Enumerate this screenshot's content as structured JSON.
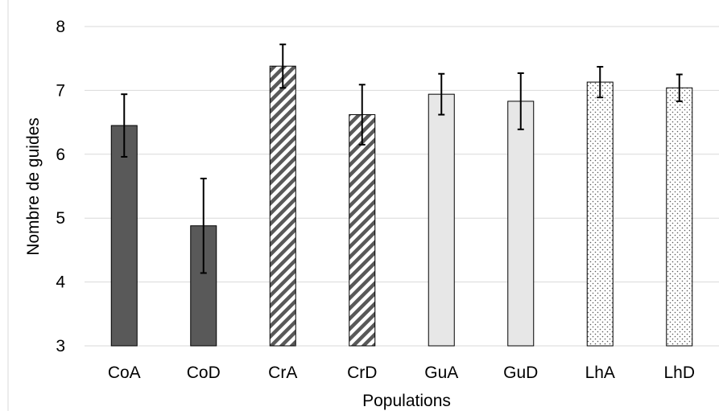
{
  "chart_data": {
    "type": "bar",
    "title": "",
    "xlabel": "Populations",
    "ylabel": "Nombre de guides",
    "ylim": [
      3,
      8
    ],
    "yticks": [
      3,
      4,
      5,
      6,
      7,
      8
    ],
    "grid": true,
    "legend": "none",
    "categories": [
      "CoA",
      "CoD",
      "CrA",
      "CrD",
      "GuA",
      "GuD",
      "LhA",
      "LhD"
    ],
    "values": [
      6.45,
      4.88,
      7.38,
      6.62,
      6.94,
      6.83,
      7.13,
      7.04
    ],
    "errors": [
      0.49,
      0.74,
      0.34,
      0.47,
      0.32,
      0.44,
      0.24,
      0.21
    ],
    "fills": [
      "solid",
      "solid",
      "hatched",
      "hatched",
      "light",
      "light",
      "dotted",
      "dotted"
    ],
    "colors": {
      "solid": "#595959",
      "hatched": "#595959",
      "light": "#e7e7e7",
      "dotted": "#595959",
      "grid": "#d9d9d9",
      "border": "#000000"
    }
  }
}
